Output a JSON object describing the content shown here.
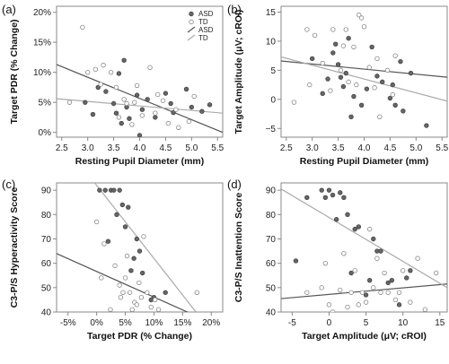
{
  "chart_data": [
    {
      "type": "scatter",
      "panel_label": "(a)",
      "xlabel": "Resting Pupil Diameter (mm)",
      "ylabel": "Target PDR (% Change)",
      "xlim": [
        2.4,
        5.6
      ],
      "ylim": [
        -0.8,
        21
      ],
      "xticks": [
        2.5,
        3.0,
        3.5,
        4.0,
        4.5,
        5.0,
        5.5
      ],
      "xtick_labels": [
        "2.5",
        "3.0",
        "3.5",
        "4.0",
        "4.5",
        "5.0",
        "5.5"
      ],
      "yticks": [
        0,
        5,
        10,
        15,
        20
      ],
      "ytick_labels": [
        "0%",
        "5%",
        "10%",
        "15%",
        "20%"
      ],
      "legend": {
        "placement": "top-right",
        "entries": [
          {
            "label": "ASD",
            "marker": "filled-circle"
          },
          {
            "label": "TD",
            "marker": "open-circle"
          },
          {
            "label": "ASD",
            "marker": "line",
            "color": "#555555"
          },
          {
            "label": "TD",
            "marker": "line",
            "color": "#aaaaaa"
          }
        ]
      },
      "series": [
        {
          "name": "ASD",
          "marker": "filled",
          "x": [
            2.95,
            3.1,
            3.2,
            3.35,
            3.5,
            3.55,
            3.6,
            3.65,
            3.7,
            3.75,
            3.8,
            3.95,
            4.0,
            4.05,
            4.15,
            4.3,
            4.5,
            4.6,
            4.65,
            4.9,
            5.0,
            5.2,
            5.35
          ],
          "y": [
            5,
            3,
            7.5,
            6.8,
            4.8,
            3.2,
            9.8,
            1.5,
            12,
            4.2,
            2.3,
            6.2,
            -0.5,
            3.8,
            5.5,
            2.5,
            6.5,
            4.8,
            3.3,
            7.2,
            4.2,
            3.5,
            4.6
          ]
        },
        {
          "name": "TD",
          "marker": "open",
          "x": [
            2.65,
            2.9,
            3.0,
            3.15,
            3.25,
            3.3,
            3.45,
            3.55,
            3.6,
            3.7,
            3.75,
            3.85,
            3.9,
            3.95,
            4.05,
            4.2,
            4.3,
            4.35,
            4.45,
            4.55,
            4.7,
            4.75,
            4.95,
            5.05
          ],
          "y": [
            5,
            17.5,
            10,
            10.5,
            8,
            11.2,
            10,
            7.5,
            2.5,
            5.5,
            4.8,
            1.3,
            5,
            7.8,
            2.8,
            10.8,
            3.2,
            6.3,
            5.3,
            1.5,
            3.8,
            0.8,
            1.8,
            6
          ]
        },
        {
          "name": "ASD",
          "type": "line",
          "x": [
            2.4,
            5.6
          ],
          "y": [
            11.3,
            0
          ],
          "color": "#555555"
        },
        {
          "name": "TD",
          "type": "line",
          "x": [
            2.4,
            5.6
          ],
          "y": [
            5.6,
            3.2
          ],
          "color": "#aaaaaa"
        }
      ]
    },
    {
      "type": "scatter",
      "panel_label": "(b)",
      "xlabel": "Resting Pupil Diameter (mm)",
      "ylabel": "Target Amplitude (μV; cROI)",
      "xlim": [
        2.4,
        5.6
      ],
      "ylim": [
        -6.5,
        16
      ],
      "xticks": [
        2.5,
        3.0,
        3.5,
        4.0,
        4.5,
        5.0,
        5.5
      ],
      "xtick_labels": [
        "2.5",
        "3.0",
        "3.5",
        "4.0",
        "4.5",
        "5.0",
        "5.5"
      ],
      "yticks": [
        -5,
        0,
        5,
        10,
        15
      ],
      "ytick_labels": [
        "−5",
        "0",
        "5",
        "10",
        "15"
      ],
      "series": [
        {
          "name": "ASD",
          "marker": "filled",
          "x": [
            3.0,
            3.2,
            3.3,
            3.4,
            3.45,
            3.5,
            3.55,
            3.6,
            3.65,
            3.7,
            3.75,
            3.8,
            3.95,
            4.05,
            4.15,
            4.25,
            4.35,
            4.5,
            4.55,
            4.6,
            4.7,
            4.75,
            4.9,
            5.2
          ],
          "y": [
            7,
            1,
            3.5,
            8,
            9.5,
            6,
            3.8,
            2.2,
            4.5,
            10.5,
            -3,
            0.5,
            -1,
            1.8,
            9,
            4,
            3,
            0.2,
            2.5,
            -1,
            6.5,
            -2,
            4.5,
            -4.5
          ]
        },
        {
          "name": "TD",
          "marker": "open",
          "x": [
            2.65,
            2.9,
            2.95,
            3.05,
            3.2,
            3.35,
            3.4,
            3.55,
            3.6,
            3.65,
            3.7,
            3.8,
            3.85,
            3.9,
            3.95,
            4.0,
            4.1,
            4.2,
            4.25,
            4.3,
            4.45,
            4.55,
            4.6
          ],
          "y": [
            -0.5,
            12,
            2.5,
            11,
            6.2,
            1.5,
            12,
            5,
            9.2,
            12,
            3,
            9,
            2.5,
            14.5,
            14,
            12.5,
            5.5,
            2,
            7,
            -3,
            5,
            0.8,
            7.5
          ]
        },
        {
          "name": "ASD",
          "type": "line",
          "x": [
            2.4,
            5.6
          ],
          "y": [
            6.6,
            3.8
          ],
          "color": "#555555"
        },
        {
          "name": "TD",
          "type": "line",
          "x": [
            2.4,
            5.6
          ],
          "y": [
            7.3,
            -0.3
          ],
          "color": "#aaaaaa"
        }
      ]
    },
    {
      "type": "scatter",
      "panel_label": "(c)",
      "xlabel": "Target PDR (% Change)",
      "ylabel": "C3-P/S Hyperactivity Score",
      "xlim": [
        -7,
        22
      ],
      "ylim": [
        40,
        93
      ],
      "xticks": [
        -5,
        0,
        5,
        10,
        15,
        20
      ],
      "xtick_labels": [
        "-5%",
        "0%",
        "5%",
        "10%",
        "15%",
        "20%"
      ],
      "yticks": [
        40,
        50,
        60,
        70,
        80,
        90
      ],
      "ytick_labels": [
        "40",
        "50",
        "60",
        "70",
        "80",
        "90"
      ],
      "series": [
        {
          "name": "ASD",
          "marker": "filled",
          "x": [
            0.5,
            1.5,
            2,
            2.5,
            3,
            3.5,
            4,
            4.5,
            5,
            5.5,
            6,
            6.5,
            7,
            7.5,
            8,
            9.5,
            10,
            12
          ],
          "y": [
            90,
            90,
            69,
            90,
            90,
            80,
            90,
            84,
            75,
            83,
            57,
            62,
            70,
            65,
            56,
            45,
            46,
            48
          ]
        },
        {
          "name": "TD",
          "marker": "open",
          "x": [
            0,
            0.8,
            1.3,
            2.4,
            3.2,
            4,
            4.2,
            4.6,
            5,
            5.3,
            5.8,
            6.2,
            6.6,
            7,
            7.4,
            7.8,
            8.2,
            8.8,
            9.5,
            10.2,
            10.8,
            17.5
          ],
          "y": [
            77,
            54,
            68,
            41,
            59,
            51,
            46,
            48,
            54,
            63,
            48,
            41,
            44,
            43,
            52,
            46,
            71,
            48,
            42,
            45,
            41,
            48
          ]
        },
        {
          "name": "ASD",
          "type": "line",
          "x": [
            -7,
            22
          ],
          "y": [
            64,
            33.5
          ],
          "color": "#555555"
        },
        {
          "name": "TD",
          "type": "line",
          "x": [
            -7,
            22
          ],
          "y": [
            113,
            26
          ],
          "color": "#aaaaaa"
        }
      ]
    },
    {
      "type": "scatter",
      "panel_label": "(d)",
      "xlabel": "Target Amplitude (μV; cROI)",
      "ylabel": "C3-P/S Inattention Score",
      "xlim": [
        -6.5,
        16
      ],
      "ylim": [
        40,
        93
      ],
      "xticks": [
        -5,
        0,
        5,
        10,
        15
      ],
      "xtick_labels": [
        "-5",
        "0",
        "5",
        "10",
        "15"
      ],
      "yticks": [
        40,
        50,
        60,
        70,
        80,
        90
      ],
      "ytick_labels": [
        "40",
        "50",
        "60",
        "70",
        "80",
        "90"
      ],
      "series": [
        {
          "name": "ASD",
          "marker": "filled",
          "x": [
            -4.5,
            -3,
            -1,
            0,
            -0.5,
            0.5,
            1,
            1.5,
            2,
            2.5,
            3,
            3.5,
            4,
            5,
            5.5,
            6,
            6.5,
            7,
            8,
            8.5,
            9.5,
            10.5,
            11
          ],
          "y": [
            61,
            87,
            90,
            90,
            87,
            88,
            78,
            89,
            87,
            80,
            56,
            74,
            75,
            47,
            53,
            70,
            65,
            65,
            52,
            53,
            43,
            54,
            57
          ]
        },
        {
          "name": "TD",
          "marker": "open",
          "x": [
            -3,
            -1,
            -0.5,
            0,
            0.5,
            1.5,
            2,
            2.5,
            3,
            3.5,
            4,
            4.5,
            5,
            5.5,
            6,
            6.5,
            7,
            7.5,
            8,
            9,
            9.5,
            10,
            11,
            12,
            13,
            14.5
          ],
          "y": [
            48,
            50,
            60,
            43,
            40,
            49,
            64,
            42,
            48,
            57,
            43,
            48,
            44,
            74,
            50,
            62,
            48,
            56,
            48,
            45,
            48,
            57,
            44,
            62,
            41,
            56
          ]
        },
        {
          "name": "ASD",
          "type": "line",
          "x": [
            -6.5,
            16
          ],
          "y": [
            45.5,
            51.5
          ],
          "color": "#555555"
        },
        {
          "name": "TD",
          "type": "line",
          "x": [
            -6.5,
            16
          ],
          "y": [
            90.5,
            50
          ],
          "color": "#aaaaaa"
        }
      ]
    }
  ]
}
